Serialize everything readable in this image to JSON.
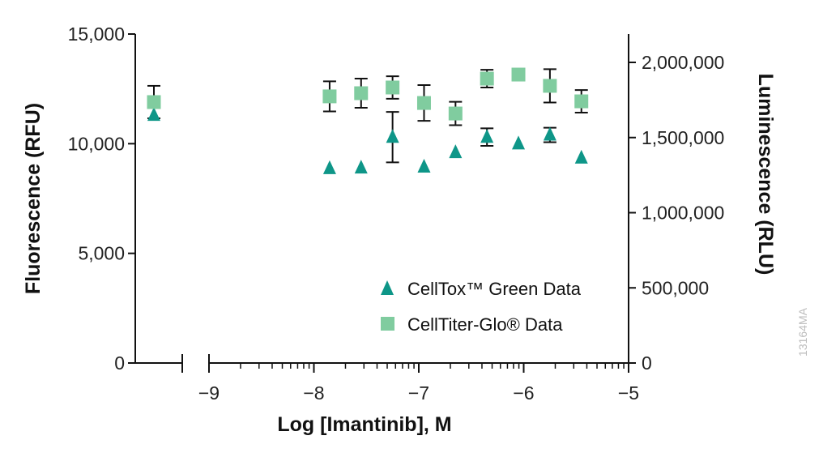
{
  "chart_data": {
    "type": "scatter",
    "xlabel": "Log [Imantinib], M",
    "ylabel_left": "Fluorescence (RFU)",
    "ylabel_right": "Luminescence (RLU)",
    "x_ticks": [
      "−9",
      "−8",
      "−7",
      "−6",
      "−5"
    ],
    "x_tick_values": [
      -9,
      -8,
      -7,
      -6,
      -5
    ],
    "xlim": [
      -9,
      -5
    ],
    "x_axis_break": true,
    "y_left_ticks": [
      "0",
      "5,000",
      "10,000",
      "15,000"
    ],
    "y_left_tick_values": [
      0,
      5000,
      10000,
      15000
    ],
    "ylim_left": [
      0,
      15000
    ],
    "y_right_ticks": [
      "0",
      "500,000",
      "1,000,000",
      "1,500,000",
      "2,000,000"
    ],
    "y_right_tick_values": [
      0,
      500000,
      1000000,
      1500000,
      2000000
    ],
    "ylim_right": [
      0,
      2000000
    ],
    "grid": false,
    "legend_position": "bottom-right",
    "x": [
      null,
      -7.85,
      -7.55,
      -7.25,
      -6.95,
      -6.65,
      -6.35,
      -6.05,
      -5.75,
      -5.45
    ],
    "series": [
      {
        "name": "CellTox™ Green Data",
        "axis": "left",
        "marker": "triangle",
        "color": "#0e9688",
        "values": [
          11300,
          8870,
          8900,
          10300,
          8940,
          9600,
          10300,
          10000,
          10400,
          9350
        ],
        "errors": [
          0,
          0,
          0,
          1150,
          0,
          0,
          400,
          0,
          330,
          0
        ]
      },
      {
        "name": "CellTiter-Glo® Data",
        "axis": "right",
        "marker": "square",
        "color": "#80cc9f",
        "values": [
          1736000,
          1774000,
          1795000,
          1833000,
          1730000,
          1660000,
          1892000,
          1919000,
          1844000,
          1741000
        ],
        "errors": [
          108000,
          100000,
          97000,
          75000,
          119000,
          78000,
          59000,
          0,
          111000,
          75000
        ]
      }
    ]
  },
  "legend": {
    "items": [
      "CellTox™ Green Data",
      "CellTiter-Glo® Data"
    ]
  },
  "watermark": "13164MA"
}
